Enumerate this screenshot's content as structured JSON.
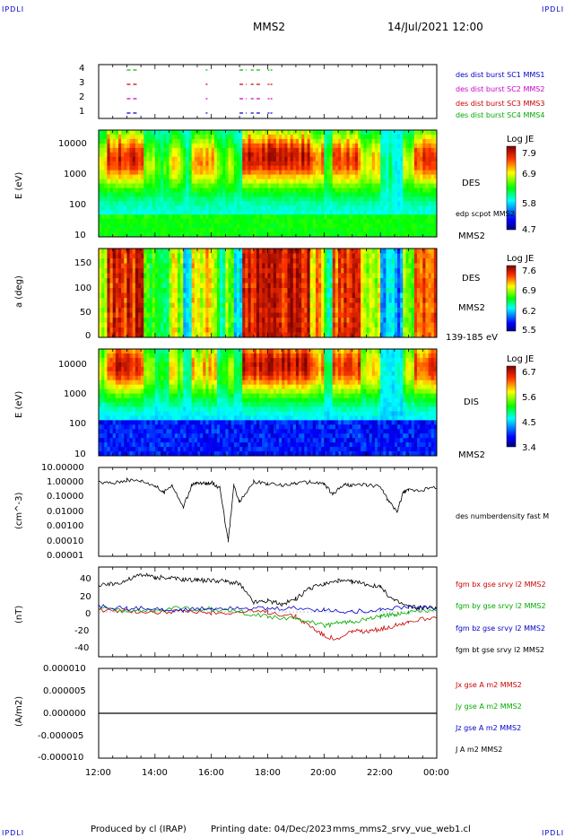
{
  "corner_mark": "IPDLI",
  "header": {
    "spacecraft": "MMS2",
    "datetime": "14/Jul/2021 12:00"
  },
  "footer": {
    "producer": "Produced by cl (IRAP)",
    "printing": "Printing date: 04/Dec/2023",
    "filename": "mms_mms2_srvy_vue_web1.cl"
  },
  "chart_data": {
    "type": "line",
    "xaxis": {
      "ticks": [
        "12:00",
        "14:00",
        "16:00",
        "18:00",
        "20:00",
        "22:00",
        "00:00"
      ],
      "range_hours": [
        12,
        24
      ]
    },
    "panels": [
      {
        "id": "burst",
        "type": "scatter",
        "yticks": [
          "4",
          "3",
          "2",
          "1"
        ],
        "legend": [
          {
            "text": "des dist burst SC1 MMS1",
            "color": "#0000cc"
          },
          {
            "text": "des dist burst SC2 MMS2",
            "color": "#cc00cc"
          },
          {
            "text": "des dist burst SC3 MMS3",
            "color": "#cc0000"
          },
          {
            "text": "des dist burst SC4 MMS4",
            "color": "#00bb00"
          }
        ],
        "intervals_hours": [
          [
            13.0,
            13.4
          ],
          [
            15.8,
            15.85
          ],
          [
            17.0,
            17.25
          ],
          [
            17.4,
            17.5
          ],
          [
            17.6,
            17.75
          ],
          [
            18.0,
            18.05
          ],
          [
            18.1,
            18.15
          ]
        ]
      },
      {
        "id": "des-energy",
        "type": "heatmap",
        "ylabel": "E (eV)",
        "yticks": [
          "10000",
          "1000",
          "100",
          "10"
        ],
        "label_right": "DES",
        "label_right2": "edp scpot MMS2",
        "sc_label": "MMS2",
        "colorbar": {
          "title": "Log JE",
          "ticks": [
            "7.9",
            "6.9",
            "5.8",
            "4.7"
          ]
        }
      },
      {
        "id": "des-pitch",
        "type": "heatmap",
        "ylabel": "a (deg)",
        "yticks": [
          "150",
          "100",
          "50",
          "0"
        ],
        "label_right": "DES",
        "sc_label": "MMS2",
        "energy_range": "139-185 eV",
        "colorbar": {
          "title": "Log JE",
          "ticks": [
            "7.6",
            "6.9",
            "6.2",
            "5.5"
          ]
        }
      },
      {
        "id": "dis-energy",
        "type": "heatmap",
        "ylabel": "E (eV)",
        "yticks": [
          "10000",
          "1000",
          "100",
          "10"
        ],
        "label_right": "DIS",
        "sc_label": "MMS2",
        "colorbar": {
          "title": "Log JE",
          "ticks": [
            "6.7",
            "5.6",
            "4.5",
            "3.4"
          ]
        }
      },
      {
        "id": "density",
        "type": "line",
        "ylabel": "(cm^-3)",
        "yticks": [
          "10.00000",
          "1.00000",
          "0.10000",
          "0.01000",
          "0.00100",
          "0.00010",
          "0.00001"
        ],
        "ylim_log10": [
          -5,
          1
        ],
        "legend": [
          {
            "text": "des numberdensity fast M",
            "color": "#000000"
          }
        ],
        "series": [
          {
            "name": "des numberdensity fast M",
            "x": [
              12.0,
              12.5,
              13.0,
              13.5,
              14.0,
              14.3,
              14.6,
              15.0,
              15.3,
              15.5,
              15.8,
              16.0,
              16.3,
              16.6,
              16.8,
              17.0,
              17.5,
              18.0,
              18.5,
              19.0,
              19.5,
              20.0,
              20.3,
              20.7,
              21.0,
              21.5,
              22.0,
              22.3,
              22.6,
              22.8,
              23.0,
              23.5,
              24.0
            ],
            "y": [
              1.0,
              0.9,
              1.4,
              1.3,
              0.6,
              0.2,
              0.7,
              0.02,
              0.6,
              0.9,
              0.8,
              1.0,
              0.4,
              0.0001,
              0.6,
              0.05,
              1.1,
              0.8,
              0.6,
              0.9,
              1.0,
              0.8,
              0.15,
              0.7,
              0.6,
              0.7,
              0.5,
              0.05,
              0.01,
              0.2,
              0.3,
              0.3,
              0.5
            ]
          }
        ]
      },
      {
        "id": "bfield",
        "type": "line",
        "ylabel": "(nT)",
        "yticks": [
          "40",
          "20",
          "0",
          "-20",
          "-40"
        ],
        "ylim": [
          -48,
          48
        ],
        "legend": [
          {
            "text": "fgm bx gse srvy l2 MMS2",
            "color": "#cc0000"
          },
          {
            "text": "fgm by gse srvy l2 MMS2",
            "color": "#00aa00"
          },
          {
            "text": "fgm bz gse srvy l2 MMS2",
            "color": "#0000cc"
          },
          {
            "text": "fgm bt gse srvy l2 MMS2",
            "color": "#000000"
          }
        ],
        "series": [
          {
            "name": "fgm bt gse srvy l2 MMS2",
            "color": "#000000",
            "x": [
              12.0,
              12.5,
              13.0,
              13.5,
              14.0,
              14.5,
              15.0,
              15.5,
              16.0,
              16.5,
              17.0,
              17.5,
              18.0,
              18.5,
              19.0,
              19.5,
              20.0,
              20.5,
              21.0,
              21.5,
              22.0,
              22.5,
              23.0,
              23.5,
              24.0
            ],
            "y": [
              28,
              30,
              34,
              40,
              37,
              36,
              35,
              34,
              34,
              33,
              30,
              10,
              12,
              8,
              14,
              25,
              30,
              33,
              32,
              30,
              26,
              12,
              6,
              4,
              5
            ]
          },
          {
            "name": "fgm bx gse srvy l2 MMS2",
            "color": "#cc0000",
            "x": [
              12.0,
              13.0,
              14.0,
              15.0,
              16.0,
              17.0,
              18.0,
              19.0,
              19.5,
              20.0,
              20.5,
              21.0,
              21.5,
              22.0,
              22.5,
              23.0,
              24.0
            ],
            "y": [
              2,
              1,
              0,
              0,
              -1,
              0,
              0,
              -5,
              -15,
              -25,
              -30,
              -20,
              -22,
              -18,
              -15,
              -10,
              -5
            ]
          },
          {
            "name": "fgm by gse srvy l2 MMS2",
            "color": "#00aa00",
            "x": [
              12.0,
              13.0,
              14.0,
              15.0,
              16.0,
              17.0,
              18.0,
              19.0,
              19.5,
              20.0,
              20.5,
              21.0,
              21.5,
              22.0,
              22.5,
              23.0,
              24.0
            ],
            "y": [
              5,
              0,
              2,
              4,
              3,
              0,
              -5,
              -8,
              -10,
              -15,
              -12,
              -10,
              -8,
              -5,
              -3,
              0,
              2
            ]
          },
          {
            "name": "fgm bz gse srvy l2 MMS2",
            "color": "#0000cc",
            "x": [
              12.0,
              13.0,
              14.0,
              15.0,
              16.0,
              17.0,
              18.0,
              19.0,
              20.0,
              21.0,
              22.0,
              23.0,
              24.0
            ],
            "y": [
              6,
              4,
              3,
              2,
              4,
              5,
              3,
              4,
              2,
              0,
              3,
              5,
              4
            ]
          }
        ]
      },
      {
        "id": "current",
        "type": "line",
        "ylabel": "(A/m2)",
        "yticks": [
          "0.000010",
          "0.000005",
          "0.000000",
          "-0.000005",
          "-0.000010"
        ],
        "ylim": [
          -1e-05,
          1e-05
        ],
        "legend": [
          {
            "text": "Jx gse A m2 MMS2",
            "color": "#cc0000"
          },
          {
            "text": "Jy gse A m2 MMS2",
            "color": "#00aa00"
          },
          {
            "text": "Jz gse A m2 MMS2",
            "color": "#0000cc"
          },
          {
            "text": "J A m2 MMS2",
            "color": "#000000"
          }
        ],
        "series": [
          {
            "name": "J A m2 MMS2",
            "color": "#000000",
            "x": [
              12.0,
              24.0
            ],
            "y": [
              0.0,
              0.0
            ]
          }
        ]
      }
    ]
  }
}
